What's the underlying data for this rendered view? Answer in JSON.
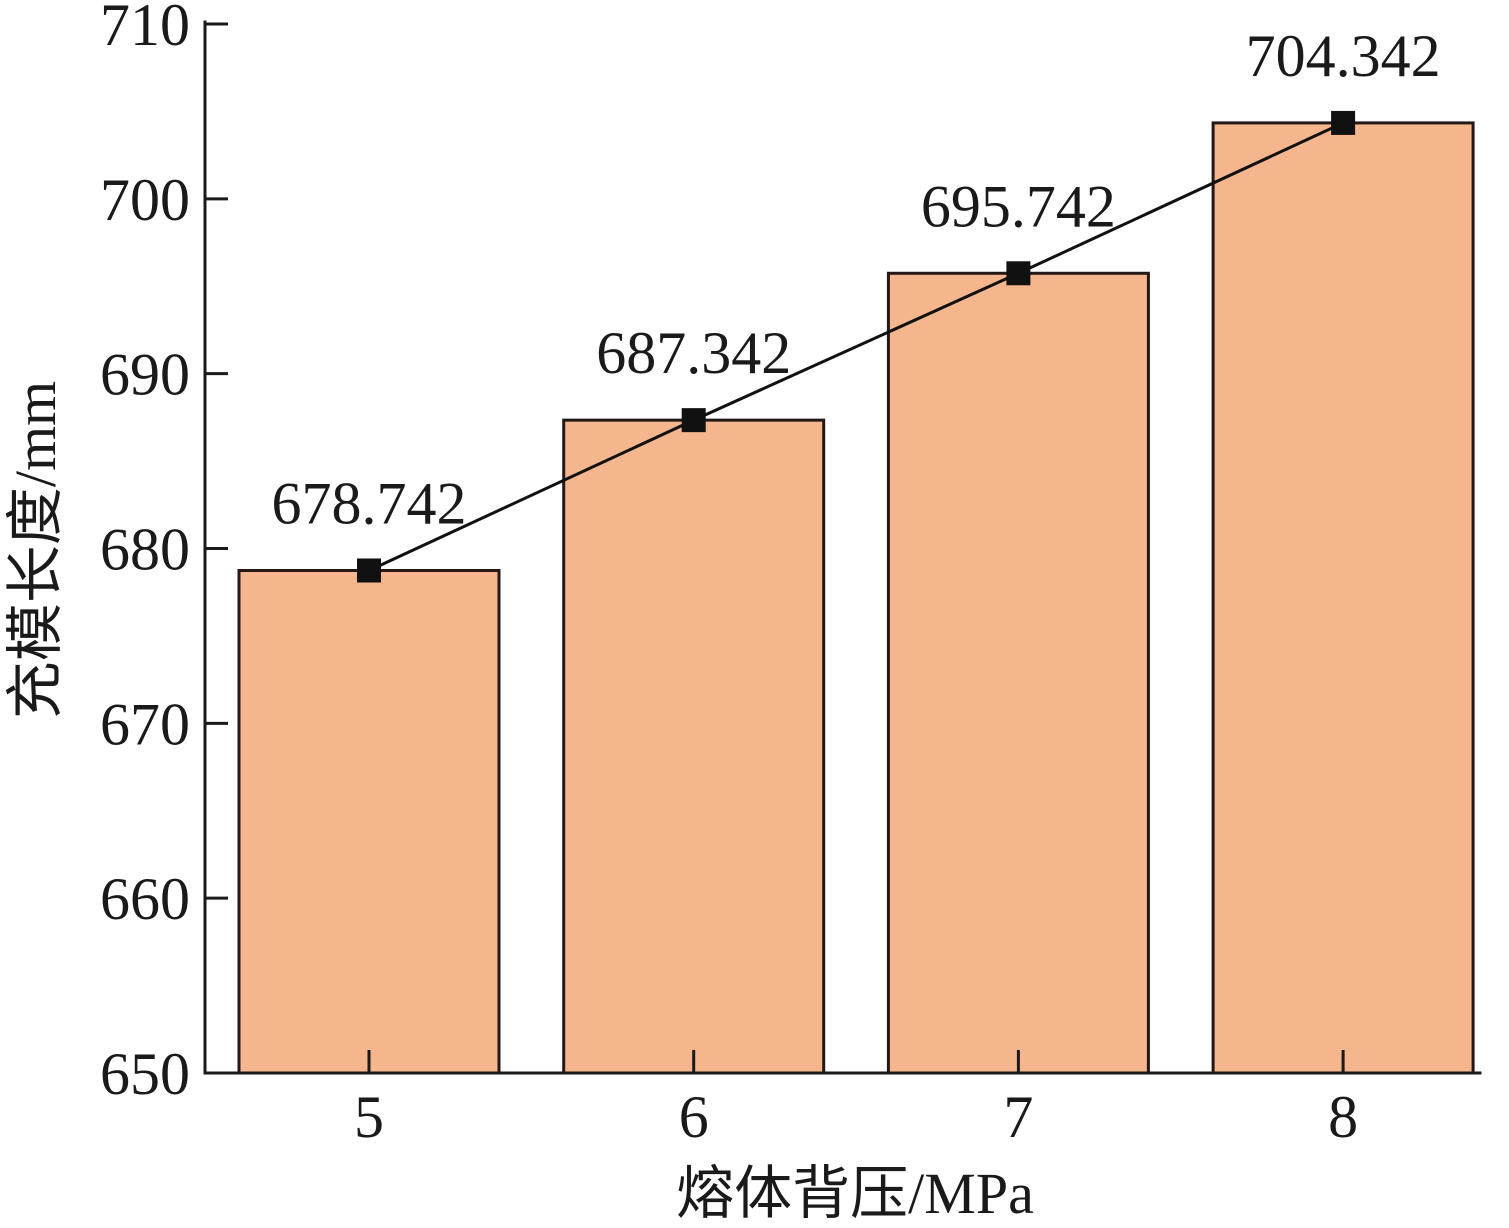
{
  "chart_data": {
    "type": "bar",
    "categories": [
      "5",
      "6",
      "7",
      "8"
    ],
    "values": [
      678.742,
      687.342,
      695.742,
      704.342
    ],
    "show_data_labels": true,
    "line_overlay": {
      "marker": "square",
      "color": "#111111"
    },
    "xlabel": "熔体背压/MPa",
    "ylabel": "充模长度/mm",
    "ylim": [
      650,
      710
    ],
    "yticks": [
      650,
      660,
      670,
      680,
      690,
      700,
      710
    ],
    "bar_color": "#F5B68E",
    "bar_edge_color": "#231815",
    "grid": false,
    "legend": "none"
  }
}
